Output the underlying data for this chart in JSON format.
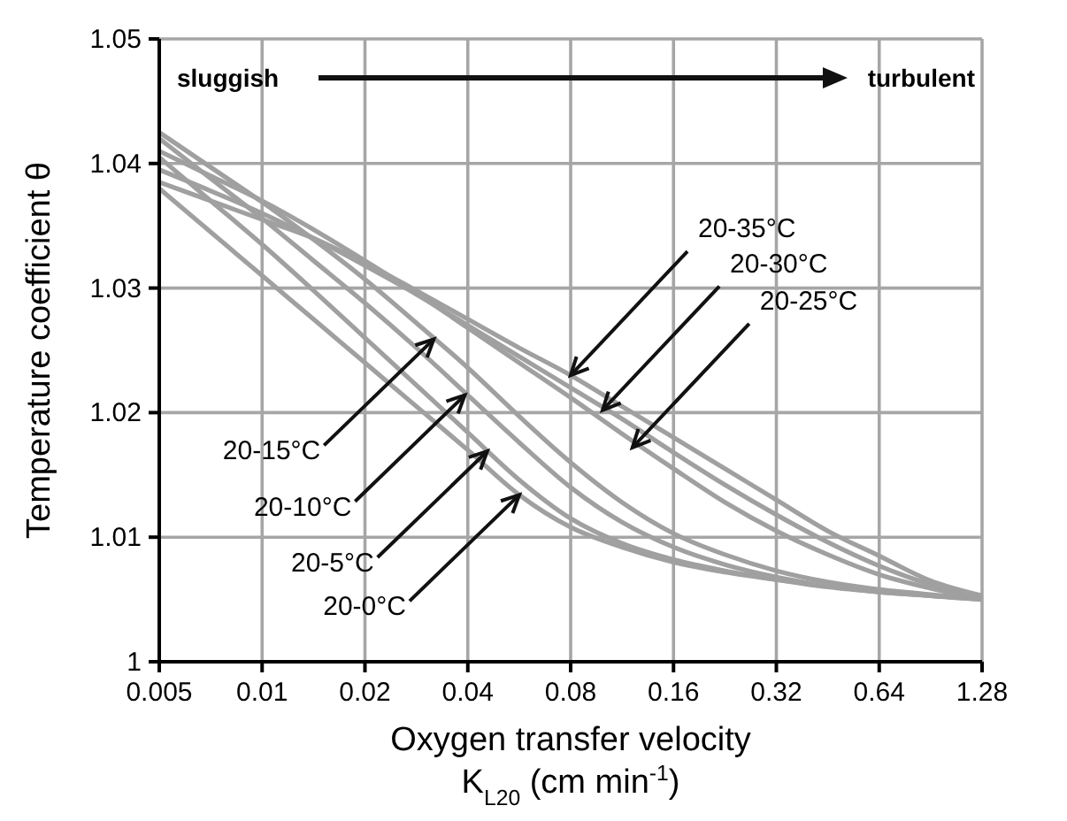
{
  "chart_data": {
    "type": "line",
    "xlabel": "Oxygen transfer velocity\nK$_{L20}$ (cm min$^{-1}$)",
    "ylabel": "Temperature coefficient θ",
    "log": "x",
    "x": [
      0.005,
      0.00707,
      0.01,
      0.01414,
      0.02,
      0.02828,
      0.04,
      0.05657,
      0.08,
      0.11314,
      0.16,
      0.22627,
      0.32,
      0.45255,
      0.64,
      0.9051,
      1.28
    ],
    "series": [
      {
        "color": "#a0a0a0",
        "values": [
          1.038,
          1.0345,
          1.031,
          1.0275,
          1.024,
          1.0205,
          1.017,
          1.0134,
          1.0108,
          1.0092,
          1.008,
          1.0072,
          1.0066,
          1.0061,
          1.0057,
          1.0053,
          1.005
        ]
      },
      {
        "color": "#a0a0a0",
        "values": [
          1.0405,
          1.037,
          1.0335,
          1.0298,
          1.026,
          1.0222,
          1.0184,
          1.0146,
          1.0115,
          1.0095,
          1.0082,
          1.0073,
          1.0066,
          1.006,
          1.0056,
          1.0053,
          1.005
        ]
      },
      {
        "color": "#a0a0a0",
        "values": [
          1.042,
          1.0388,
          1.0356,
          1.0322,
          1.0288,
          1.0252,
          1.0214,
          1.0176,
          1.014,
          1.0112,
          1.0092,
          1.0078,
          1.0068,
          1.0061,
          1.0056,
          1.0053,
          1.0051
        ]
      },
      {
        "color": "#a0a0a0",
        "values": [
          1.0425,
          1.0397,
          1.0369,
          1.0339,
          1.0307,
          1.0272,
          1.0236,
          1.0197,
          1.016,
          1.0128,
          1.0103,
          1.0086,
          1.0073,
          1.0064,
          1.0058,
          1.0054,
          1.0051
        ]
      },
      {
        "color": "#a0a0a0",
        "values": [
          1.041,
          1.039,
          1.037,
          1.0347,
          1.0322,
          1.0296,
          1.0268,
          1.024,
          1.0212,
          1.0183,
          1.0155,
          1.0128,
          1.0105,
          1.0086,
          1.007,
          1.0059,
          1.0051
        ]
      },
      {
        "color": "#a0a0a0",
        "values": [
          1.0395,
          1.0378,
          1.036,
          1.034,
          1.0318,
          1.0295,
          1.027,
          1.0245,
          1.022,
          1.0195,
          1.0168,
          1.0142,
          1.0118,
          1.0096,
          1.0077,
          1.0062,
          1.0052
        ]
      },
      {
        "color": "#a0a0a0",
        "values": [
          1.0385,
          1.037,
          1.0355,
          1.034,
          1.032,
          1.0298,
          1.0275,
          1.0252,
          1.023,
          1.0205,
          1.018,
          1.0155,
          1.013,
          1.0105,
          1.0085,
          1.0065,
          1.0053
        ]
      }
    ],
    "xlim": [
      0.005,
      1.28
    ],
    "xticks": [
      0.005,
      0.01,
      0.02,
      0.04,
      0.08,
      0.16,
      0.32,
      0.64,
      1.28
    ],
    "ylim": [
      1,
      1.05
    ],
    "yticks": [
      1,
      1.01,
      1.02,
      1.03,
      1.04,
      1.05
    ],
    "grid": true,
    "line_style": "solid",
    "annotations": [
      "sluggish",
      "turbulent",
      {
        "text": "20-0°C",
        "x": 0.0566,
        "y": 1.0134
      },
      {
        "text": "20-5°C",
        "x": 0.0456,
        "y": 1.0169
      },
      {
        "text": "20-10°C",
        "x": 0.0392,
        "y": 1.0214
      },
      {
        "text": "20-15°C",
        "x": 0.0318,
        "y": 1.0259
      },
      {
        "text": "20-35°C",
        "x": 0.08,
        "y": 1.023
      },
      {
        "text": "20-30°C",
        "x": 0.0992,
        "y": 1.0202
      },
      {
        "text": "20-25°C",
        "x": 0.1213,
        "y": 1.0172
      }
    ]
  }
}
